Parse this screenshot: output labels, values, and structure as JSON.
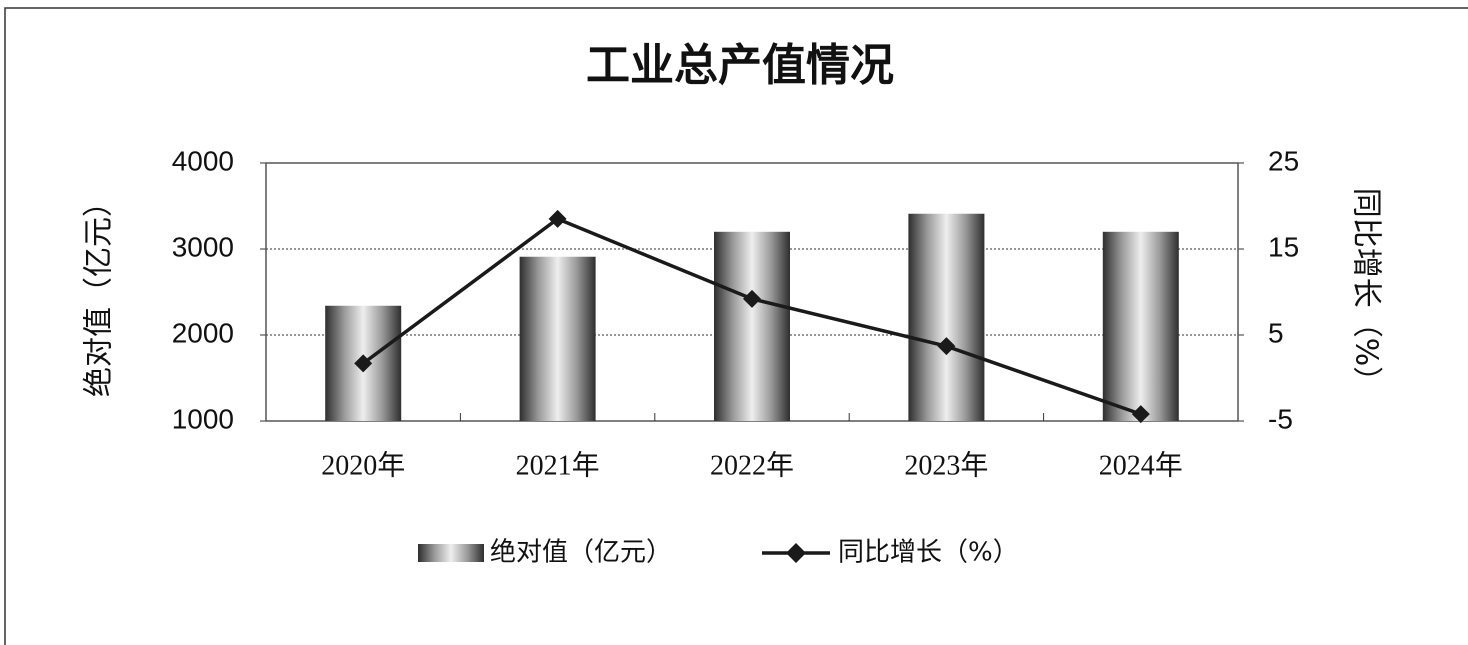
{
  "chart_data": {
    "type": "bar-line",
    "title": "工业总产值情况",
    "categories": [
      "2020年",
      "2021年",
      "2022年",
      "2023年",
      "2024年"
    ],
    "y_label": "绝对值（亿元）",
    "y2_label": "同比增长（%）",
    "ylim": [
      1000,
      4000
    ],
    "yticks": [
      1000,
      2000,
      3000,
      4000
    ],
    "y2lim": [
      -5,
      25
    ],
    "y2ticks": [
      -5,
      5,
      15,
      25
    ],
    "grid": true,
    "legend": "bottom",
    "series": [
      {
        "name": "绝对值（亿元）",
        "type": "bar",
        "color": "#9a9a9a",
        "values": [
          2340,
          2910,
          3200,
          3410,
          3200
        ]
      },
      {
        "name": "同比增长（%）",
        "type": "line",
        "axis": "y2",
        "color": "#1a1a1a",
        "values": [
          1.7,
          18.5,
          9.2,
          3.7,
          -4.2
        ]
      }
    ]
  }
}
